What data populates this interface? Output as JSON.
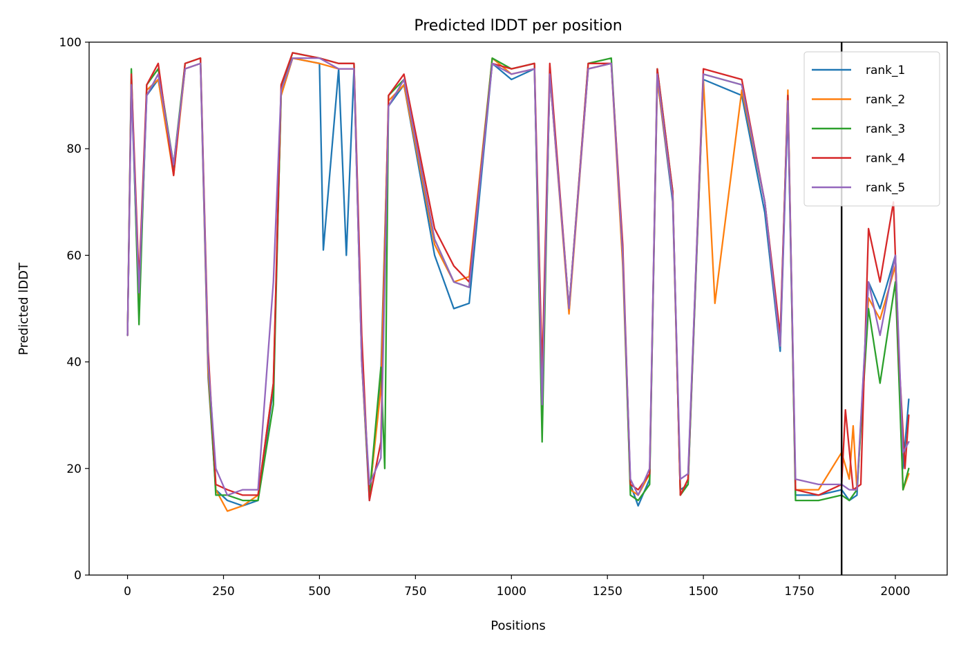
{
  "chart_data": {
    "type": "line",
    "title": "Predicted lDDT per position",
    "xlabel": "Positions",
    "ylabel": "Predicted lDDT",
    "xlim": [
      -100,
      2135
    ],
    "ylim": [
      0,
      100
    ],
    "xticks": [
      0,
      250,
      500,
      750,
      1000,
      1250,
      1500,
      1750,
      2000
    ],
    "yticks": [
      0,
      20,
      40,
      60,
      80,
      100
    ],
    "grid": false,
    "legend_position": "top-right",
    "vline_x": 1860,
    "colors": [
      "#1f77b4",
      "#ff7f0e",
      "#2ca02c",
      "#d62728",
      "#9467bd"
    ],
    "series": [
      {
        "name": "rank_1",
        "x": [
          0,
          10,
          30,
          50,
          80,
          120,
          150,
          190,
          210,
          230,
          260,
          300,
          340,
          380,
          400,
          430,
          500,
          510,
          550,
          570,
          590,
          610,
          630,
          660,
          680,
          720,
          800,
          850,
          890,
          950,
          1000,
          1060,
          1080,
          1100,
          1150,
          1200,
          1260,
          1290,
          1310,
          1330,
          1360,
          1380,
          1420,
          1440,
          1460,
          1500,
          1600,
          1660,
          1700,
          1720,
          1740,
          1800,
          1860,
          1880,
          1900,
          1930,
          1960,
          2000,
          2020,
          2035
        ],
        "values": [
          45,
          92,
          50,
          90,
          93,
          76,
          95,
          96,
          37,
          16,
          14,
          13,
          14,
          35,
          90,
          97,
          96,
          61,
          95,
          60,
          95,
          40,
          14,
          38,
          88,
          92,
          60,
          50,
          51,
          96,
          93,
          95,
          30,
          94,
          50,
          95,
          96,
          60,
          17,
          13,
          18,
          93,
          70,
          16,
          17,
          93,
          90,
          68,
          42,
          88,
          15,
          15,
          16,
          14,
          15,
          55,
          50,
          60,
          20,
          33
        ]
      },
      {
        "name": "rank_2",
        "x": [
          0,
          10,
          30,
          50,
          80,
          120,
          150,
          190,
          210,
          230,
          260,
          300,
          340,
          380,
          400,
          430,
          500,
          550,
          590,
          610,
          630,
          660,
          680,
          720,
          800,
          850,
          890,
          950,
          1000,
          1060,
          1080,
          1100,
          1150,
          1200,
          1260,
          1290,
          1310,
          1330,
          1360,
          1380,
          1420,
          1440,
          1460,
          1500,
          1530,
          1600,
          1660,
          1700,
          1720,
          1740,
          1800,
          1860,
          1880,
          1890,
          1900,
          1930,
          1960,
          2000,
          2020,
          2035
        ],
        "values": [
          45,
          93,
          52,
          91,
          93,
          75,
          95,
          96,
          38,
          16,
          12,
          13,
          15,
          36,
          90,
          97,
          96,
          95,
          95,
          40,
          15,
          35,
          89,
          92,
          62,
          55,
          56,
          97,
          94,
          95,
          31,
          94,
          49,
          95,
          96,
          58,
          16,
          15,
          19,
          93,
          71,
          15,
          18,
          93,
          51,
          91,
          70,
          43,
          91,
          16,
          16,
          23,
          18,
          28,
          16,
          52,
          48,
          58,
          16,
          19
        ]
      },
      {
        "name": "rank_3",
        "x": [
          0,
          10,
          30,
          50,
          80,
          120,
          150,
          190,
          210,
          230,
          260,
          300,
          340,
          380,
          400,
          430,
          500,
          550,
          590,
          610,
          630,
          660,
          670,
          680,
          720,
          800,
          850,
          890,
          950,
          1000,
          1060,
          1080,
          1100,
          1150,
          1200,
          1260,
          1290,
          1310,
          1330,
          1360,
          1380,
          1420,
          1440,
          1460,
          1500,
          1600,
          1660,
          1700,
          1720,
          1740,
          1800,
          1860,
          1880,
          1900,
          1930,
          1960,
          2000,
          2020,
          2035
        ],
        "values": [
          45,
          95,
          47,
          92,
          95,
          77,
          96,
          97,
          40,
          15,
          15,
          14,
          14,
          32,
          91,
          98,
          97,
          96,
          96,
          42,
          15,
          39,
          20,
          90,
          93,
          63,
          55,
          54,
          97,
          95,
          96,
          25,
          95,
          50,
          96,
          97,
          60,
          15,
          14,
          17,
          95,
          72,
          15,
          17,
          94,
          92,
          70,
          44,
          90,
          14,
          14,
          15,
          14,
          16,
          50,
          36,
          55,
          16,
          20
        ]
      },
      {
        "name": "rank_4",
        "x": [
          0,
          10,
          30,
          50,
          80,
          120,
          150,
          190,
          210,
          230,
          260,
          300,
          340,
          380,
          400,
          430,
          500,
          550,
          590,
          610,
          630,
          660,
          680,
          720,
          800,
          850,
          890,
          950,
          1000,
          1060,
          1080,
          1100,
          1150,
          1200,
          1260,
          1290,
          1310,
          1330,
          1360,
          1380,
          1420,
          1440,
          1460,
          1500,
          1600,
          1660,
          1700,
          1720,
          1740,
          1800,
          1860,
          1870,
          1890,
          1910,
          1930,
          1960,
          1995,
          2010,
          2025,
          2035
        ],
        "values": [
          45,
          94,
          55,
          92,
          96,
          75,
          96,
          97,
          42,
          17,
          16,
          15,
          15,
          36,
          92,
          98,
          97,
          96,
          96,
          45,
          14,
          25,
          90,
          94,
          65,
          58,
          55,
          96,
          95,
          96,
          38,
          96,
          50,
          96,
          96,
          62,
          17,
          16,
          19,
          95,
          72,
          15,
          18,
          95,
          93,
          70,
          45,
          90,
          16,
          15,
          17,
          31,
          16,
          17,
          65,
          55,
          70,
          40,
          20,
          30
        ]
      },
      {
        "name": "rank_5",
        "x": [
          0,
          10,
          30,
          50,
          80,
          120,
          150,
          190,
          210,
          230,
          260,
          300,
          340,
          380,
          400,
          430,
          500,
          550,
          590,
          610,
          630,
          660,
          680,
          720,
          800,
          850,
          890,
          950,
          1000,
          1060,
          1080,
          1100,
          1150,
          1200,
          1260,
          1290,
          1310,
          1330,
          1360,
          1380,
          1420,
          1440,
          1460,
          1500,
          1600,
          1660,
          1700,
          1720,
          1740,
          1800,
          1860,
          1880,
          1900,
          1930,
          1960,
          2000,
          2020,
          2035
        ],
        "values": [
          45,
          92,
          53,
          90,
          94,
          77,
          95,
          96,
          40,
          20,
          15,
          16,
          16,
          55,
          91,
          97,
          97,
          95,
          95,
          40,
          17,
          22,
          88,
          93,
          63,
          55,
          54,
          96,
          94,
          95,
          32,
          94,
          50,
          95,
          96,
          60,
          18,
          15,
          20,
          94,
          71,
          18,
          19,
          94,
          92,
          70,
          43,
          89,
          18,
          17,
          17,
          16,
          16,
          55,
          45,
          60,
          23,
          25
        ]
      }
    ]
  }
}
